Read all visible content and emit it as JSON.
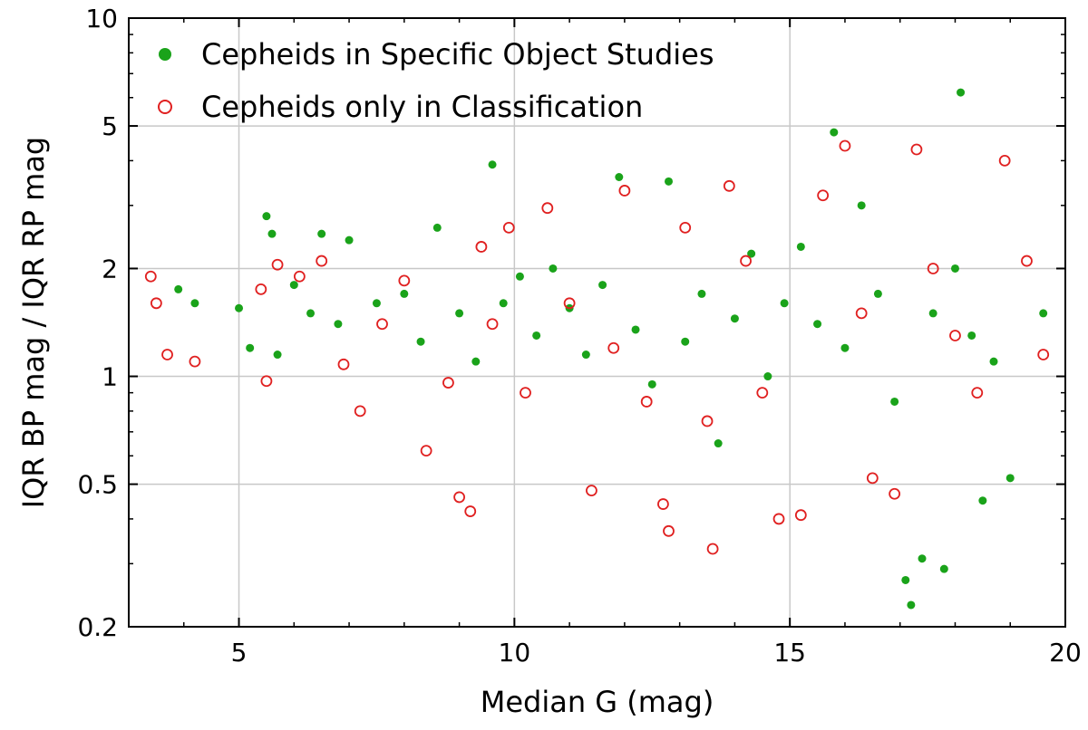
{
  "chart_data": {
    "type": "scatter",
    "xlabel": "Median G (mag)",
    "ylabel": "IQR BP mag / IQR RP mag",
    "xlim": [
      3,
      20
    ],
    "ylim": [
      0.2,
      10
    ],
    "y_scale": "log",
    "x_ticks": [
      5,
      10,
      15,
      20
    ],
    "x_tick_labels": [
      "5",
      "10",
      "15",
      "20"
    ],
    "y_ticks": [
      0.2,
      0.5,
      1,
      2,
      5,
      10
    ],
    "y_tick_labels": [
      "0.2",
      "0.5",
      "1",
      "2",
      "5",
      "10"
    ],
    "grid": true,
    "legend_position": "top-left",
    "series": [
      {
        "name": "Cepheids in Specific Object Studies",
        "marker": "filled-circle",
        "color": "#1aa31a",
        "points": [
          [
            3.9,
            1.75
          ],
          [
            4.2,
            1.6
          ],
          [
            5.0,
            1.55
          ],
          [
            5.2,
            1.2
          ],
          [
            5.5,
            2.8
          ],
          [
            5.6,
            2.5
          ],
          [
            5.7,
            1.15
          ],
          [
            6.0,
            1.8
          ],
          [
            6.3,
            1.5
          ],
          [
            6.5,
            2.5
          ],
          [
            6.8,
            1.4
          ],
          [
            7.0,
            2.4
          ],
          [
            7.5,
            1.6
          ],
          [
            8.0,
            1.7
          ],
          [
            8.3,
            1.25
          ],
          [
            8.6,
            2.6
          ],
          [
            9.0,
            1.5
          ],
          [
            9.3,
            1.1
          ],
          [
            9.6,
            3.9
          ],
          [
            9.8,
            1.6
          ],
          [
            10.1,
            1.9
          ],
          [
            10.4,
            1.3
          ],
          [
            10.7,
            2.0
          ],
          [
            11.0,
            1.55
          ],
          [
            11.3,
            1.15
          ],
          [
            11.6,
            1.8
          ],
          [
            11.9,
            3.6
          ],
          [
            12.2,
            1.35
          ],
          [
            12.5,
            0.95
          ],
          [
            12.8,
            3.5
          ],
          [
            13.1,
            1.25
          ],
          [
            13.4,
            1.7
          ],
          [
            13.7,
            0.65
          ],
          [
            14.0,
            1.45
          ],
          [
            14.3,
            2.2
          ],
          [
            14.6,
            1.0
          ],
          [
            14.9,
            1.6
          ],
          [
            15.2,
            2.3
          ],
          [
            15.5,
            1.4
          ],
          [
            15.8,
            4.8
          ],
          [
            16.0,
            1.2
          ],
          [
            16.3,
            3.0
          ],
          [
            16.6,
            1.7
          ],
          [
            16.9,
            0.85
          ],
          [
            17.1,
            0.27
          ],
          [
            17.2,
            0.23
          ],
          [
            17.4,
            0.31
          ],
          [
            17.6,
            1.5
          ],
          [
            17.8,
            0.29
          ],
          [
            18.0,
            2.0
          ],
          [
            18.1,
            6.2
          ],
          [
            18.3,
            1.3
          ],
          [
            18.5,
            0.45
          ],
          [
            18.7,
            1.1
          ],
          [
            19.0,
            0.52
          ],
          [
            19.6,
            1.5
          ]
        ]
      },
      {
        "name": "Cepheids only in Classification",
        "marker": "open-circle",
        "color": "#e02020",
        "points": [
          [
            3.4,
            1.9
          ],
          [
            3.5,
            1.6
          ],
          [
            3.7,
            1.15
          ],
          [
            4.2,
            1.1
          ],
          [
            5.4,
            1.75
          ],
          [
            5.5,
            0.97
          ],
          [
            5.7,
            2.05
          ],
          [
            6.1,
            1.9
          ],
          [
            6.5,
            2.1
          ],
          [
            6.9,
            1.08
          ],
          [
            7.2,
            0.8
          ],
          [
            7.6,
            1.4
          ],
          [
            8.0,
            1.85
          ],
          [
            8.4,
            0.62
          ],
          [
            8.8,
            0.96
          ],
          [
            9.0,
            0.46
          ],
          [
            9.2,
            0.42
          ],
          [
            9.4,
            2.3
          ],
          [
            9.6,
            1.4
          ],
          [
            9.9,
            2.6
          ],
          [
            10.2,
            0.9
          ],
          [
            10.6,
            2.95
          ],
          [
            11.0,
            1.6
          ],
          [
            11.4,
            0.48
          ],
          [
            11.8,
            1.2
          ],
          [
            12.0,
            3.3
          ],
          [
            12.4,
            0.85
          ],
          [
            12.7,
            0.44
          ],
          [
            12.8,
            0.37
          ],
          [
            13.1,
            2.6
          ],
          [
            13.5,
            0.75
          ],
          [
            13.6,
            0.33
          ],
          [
            13.9,
            3.4
          ],
          [
            14.2,
            2.1
          ],
          [
            14.5,
            0.9
          ],
          [
            14.8,
            0.4
          ],
          [
            15.2,
            0.41
          ],
          [
            15.6,
            3.2
          ],
          [
            16.0,
            4.4
          ],
          [
            16.3,
            1.5
          ],
          [
            16.5,
            0.52
          ],
          [
            16.9,
            0.47
          ],
          [
            17.3,
            4.3
          ],
          [
            17.6,
            2.0
          ],
          [
            18.0,
            1.3
          ],
          [
            18.4,
            0.9
          ],
          [
            18.9,
            4.0
          ],
          [
            19.3,
            2.1
          ],
          [
            19.6,
            1.15
          ]
        ]
      }
    ]
  }
}
